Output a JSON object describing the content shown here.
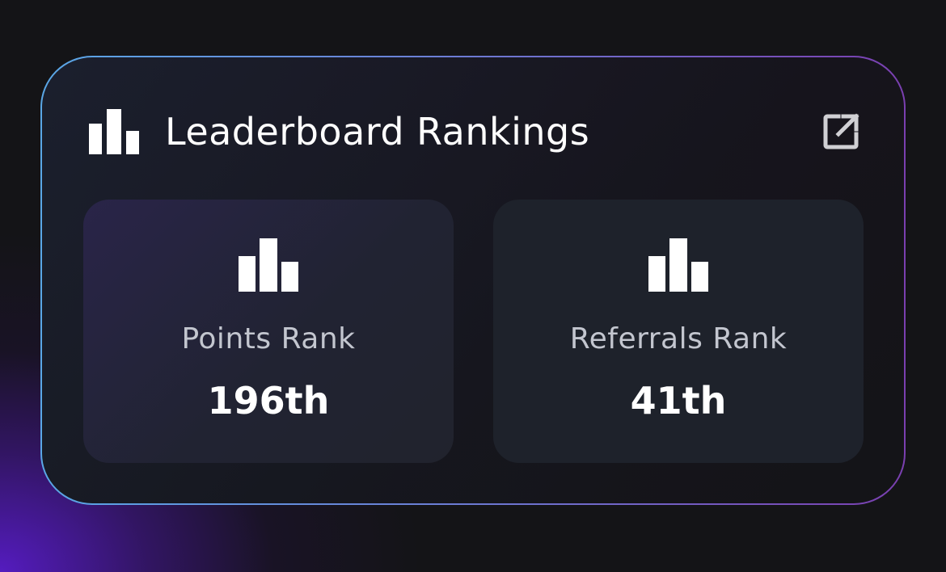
{
  "card": {
    "title": "Leaderboard Rankings",
    "title_icon": "bar-chart-icon",
    "open_icon": "external-link-icon"
  },
  "stats": [
    {
      "icon": "bar-chart-icon",
      "label": "Points Rank",
      "value": "196th"
    },
    {
      "icon": "bar-chart-icon",
      "label": "Referrals Rank",
      "value": "41th"
    }
  ],
  "colors": {
    "background": "#141417",
    "accent_glow": "#581cc8",
    "border_start": "#5aa7e6",
    "border_end": "#7a3fb0",
    "text_primary": "#ffffff",
    "text_secondary": "#c3c6cf"
  }
}
